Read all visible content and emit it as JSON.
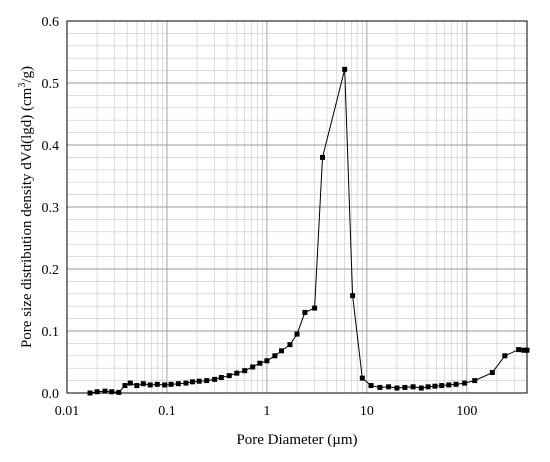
{
  "chart_data": {
    "type": "line",
    "title": "",
    "xlabel": "Pore Diameter (µm)",
    "ylabel": "Pore size distribution density dVd(lgd) (cm3/g)",
    "ylabel_parts": {
      "main": "Pore size distribution density dVd(lgd) (cm",
      "sup": "3",
      "end": "/g)"
    },
    "x_scale": "log",
    "xlim": [
      0.01,
      400
    ],
    "ylim": [
      0,
      0.6
    ],
    "x_ticks": [
      0.01,
      0.1,
      1,
      10,
      100
    ],
    "x_tick_labels": [
      "0.01",
      "0.1",
      "1",
      "10",
      "100"
    ],
    "y_ticks": [
      0,
      0.1,
      0.2,
      0.3,
      0.4,
      0.5,
      0.6
    ],
    "y_tick_labels": [
      "0.0",
      "0.1",
      "0.2",
      "0.3",
      "0.4",
      "0.5",
      "0.6"
    ],
    "grid": true,
    "marker": "square",
    "series_color": "#000000",
    "grid_color": "#c8c8c8",
    "series": [
      {
        "x": [
          0.017,
          0.02,
          0.024,
          0.028,
          0.033,
          0.038,
          0.043,
          0.05,
          0.058,
          0.068,
          0.08,
          0.095,
          0.11,
          0.13,
          0.155,
          0.18,
          0.21,
          0.25,
          0.3,
          0.35,
          0.42,
          0.5,
          0.6,
          0.72,
          0.85,
          1.0,
          1.2,
          1.4,
          1.7,
          2.0,
          2.4,
          3.0,
          3.6,
          6.0,
          7.2,
          9.0,
          11.0,
          13.5,
          16.5,
          20.0,
          24.0,
          29.0,
          35.0,
          41.0,
          48.0,
          56.0,
          66.0,
          78.0,
          95.0,
          120.0,
          180.0,
          240.0,
          330.0,
          370.0,
          400.0
        ],
        "y": [
          0.0,
          0.002,
          0.003,
          0.002,
          0.001,
          0.012,
          0.016,
          0.012,
          0.015,
          0.013,
          0.014,
          0.013,
          0.014,
          0.015,
          0.016,
          0.018,
          0.019,
          0.02,
          0.022,
          0.025,
          0.028,
          0.032,
          0.036,
          0.042,
          0.048,
          0.052,
          0.06,
          0.068,
          0.078,
          0.095,
          0.13,
          0.137,
          0.38,
          0.522,
          0.157,
          0.024,
          0.012,
          0.009,
          0.01,
          0.008,
          0.009,
          0.01,
          0.008,
          0.01,
          0.011,
          0.012,
          0.013,
          0.014,
          0.016,
          0.02,
          0.033,
          0.06,
          0.07,
          0.069,
          0.069
        ]
      }
    ]
  }
}
